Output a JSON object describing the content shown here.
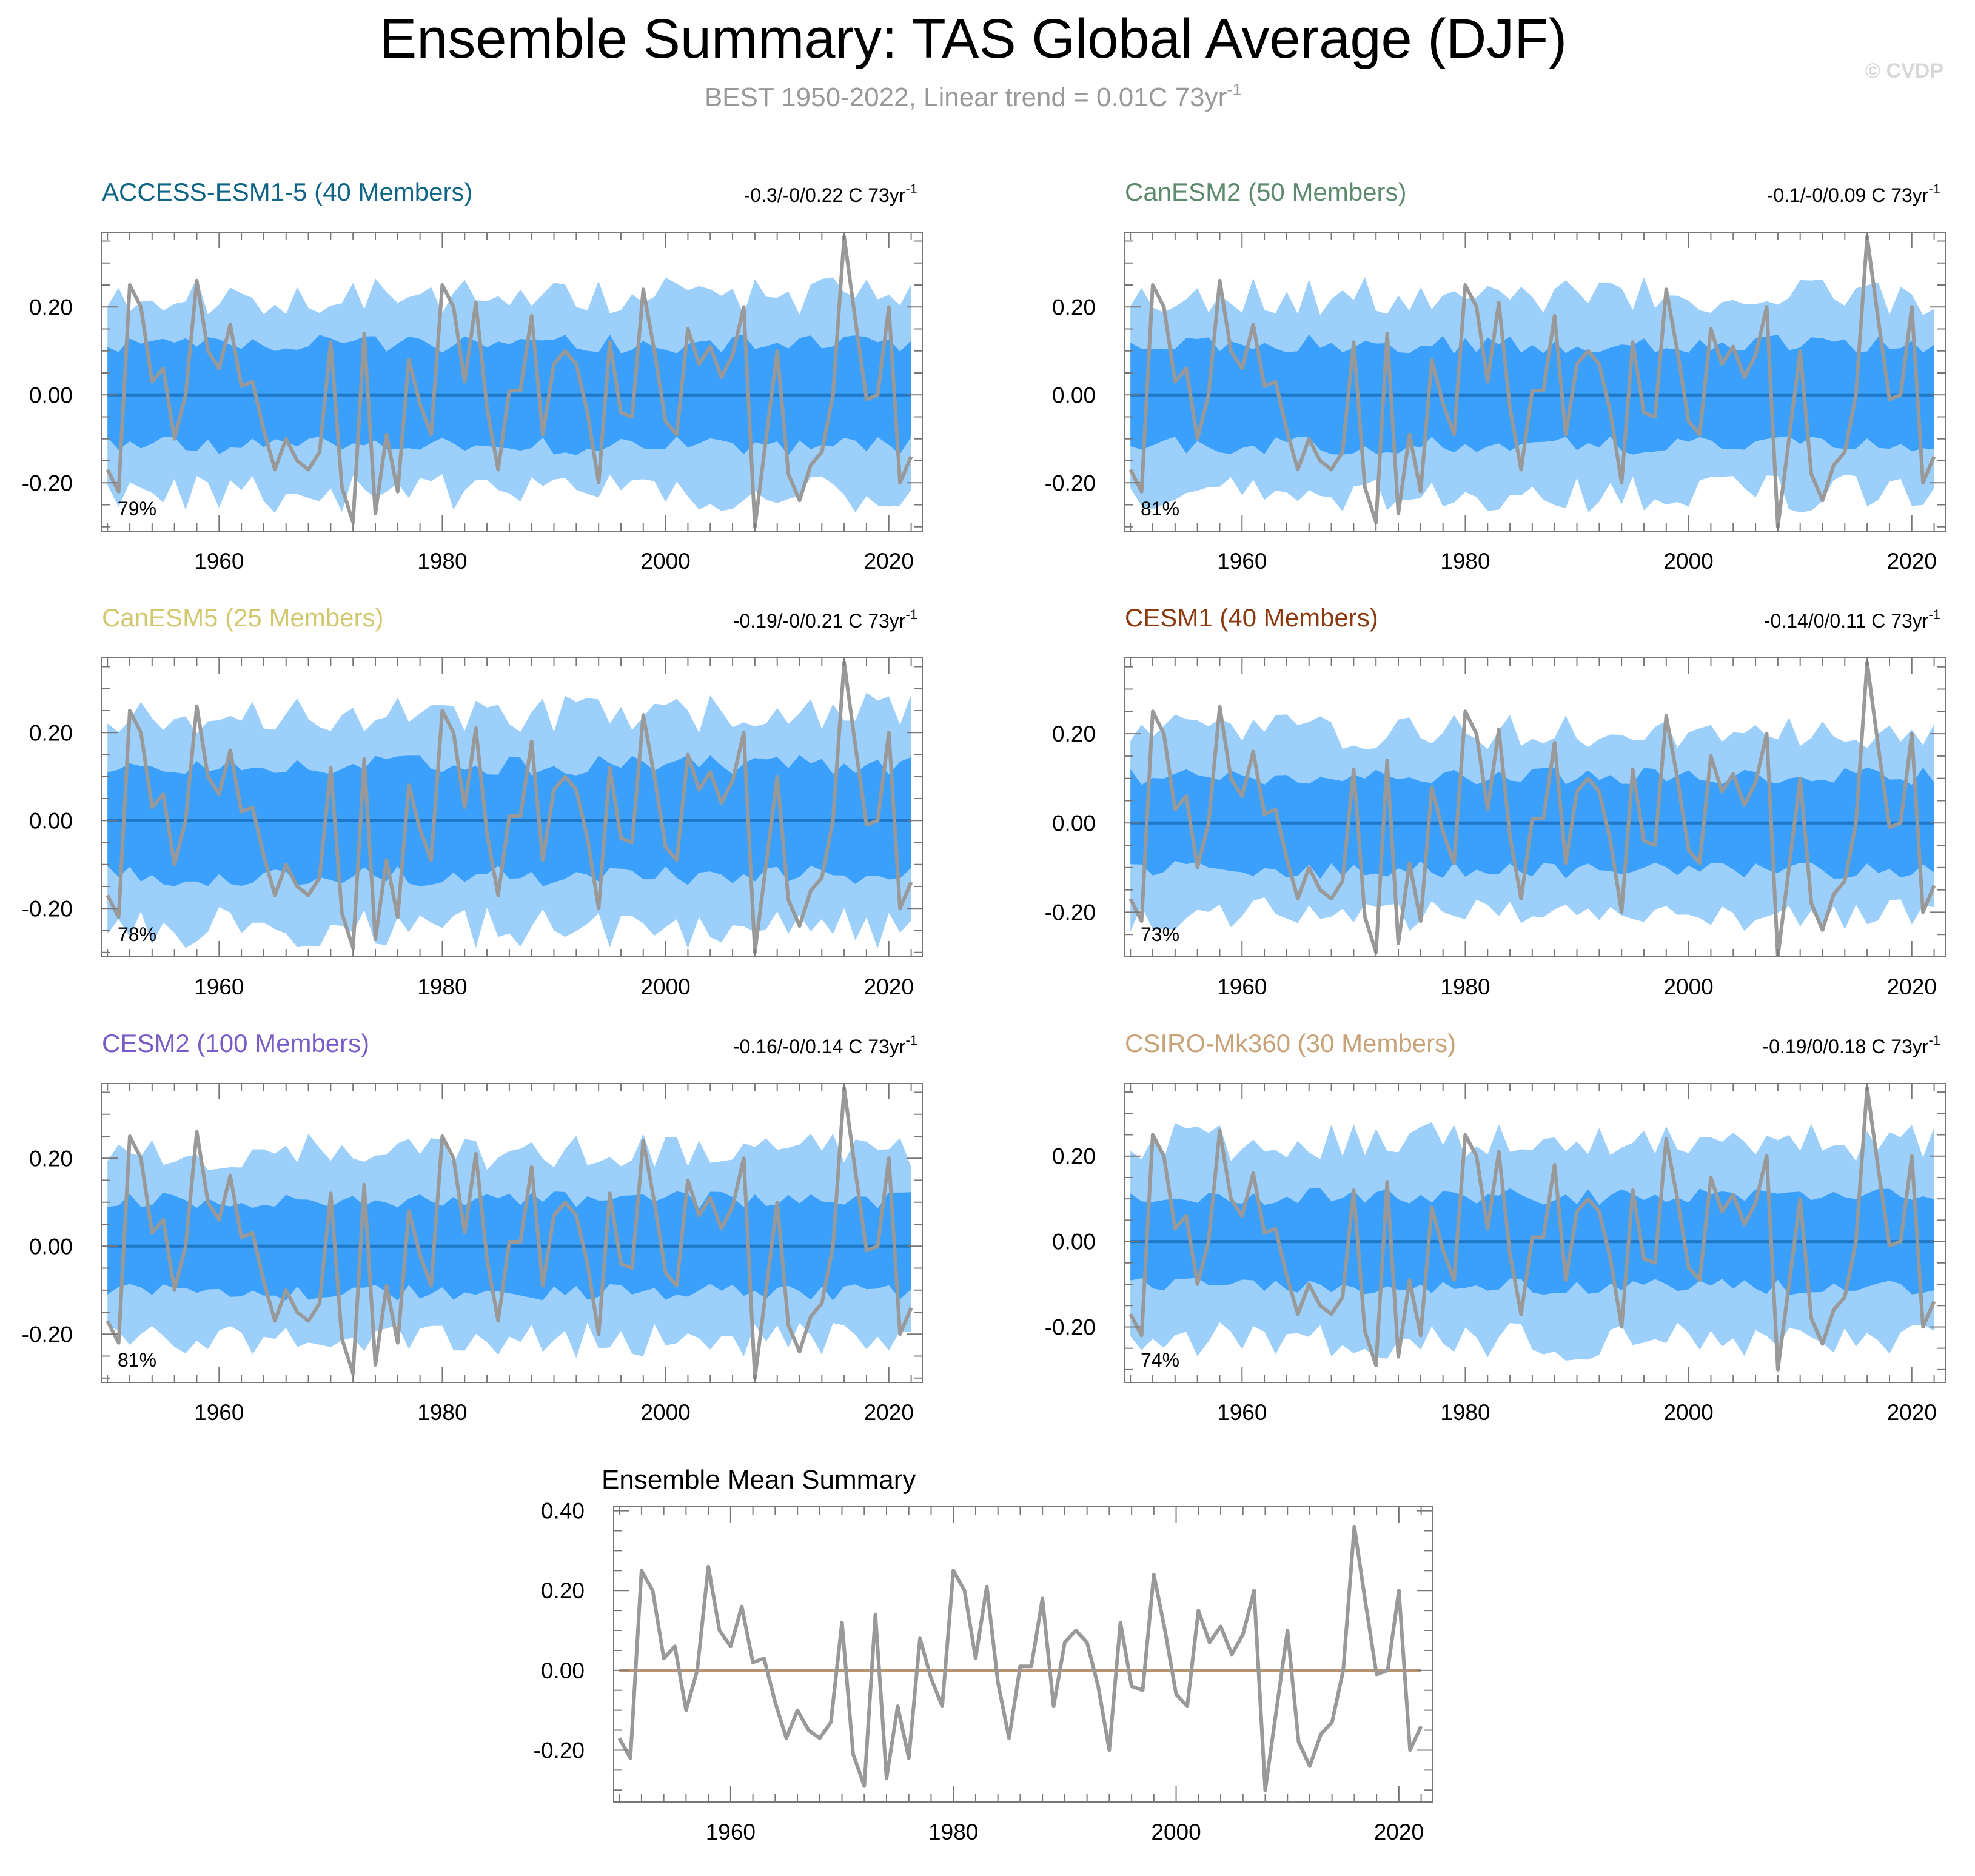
{
  "title": "Ensemble Summary: TAS Global Average (DJF)",
  "subtitle": "BEST 1950-2022, Linear trend = 0.01C 73yr",
  "subtitle_sup": "-1",
  "watermark": "© CVDP",
  "colors": {
    "band_outer": "#9ccffa",
    "band_inner": "#3aa0fb",
    "ens_mean_line": "#1f77c8",
    "obs_line": "#999999",
    "summary_zero_line": "#b89470"
  },
  "chart_data": [
    {
      "type": "area",
      "title": "ACCESS-ESM1-5 (40 Members)",
      "title_color": "#0f6585",
      "trend_label": "-0.3/-0/0.22 C 73yr",
      "trend_sup": "-1",
      "percent_label": "79%",
      "x_range": [
        1950,
        2022
      ],
      "xlim": [
        1949.5,
        2023
      ],
      "ylim": [
        -0.31,
        0.37
      ],
      "y_ticks": [
        -0.2,
        0.0,
        0.2
      ],
      "y_tick_labels": [
        "-0.20",
        "0.00",
        "0.20"
      ],
      "x_ticks": [
        1960,
        1980,
        2000,
        2020
      ],
      "outer_amp": 0.22,
      "inner_amp": 0.11,
      "seed": 11
    },
    {
      "type": "area",
      "title": "CanESM2 (50 Members)",
      "title_color": "#5e8a6e",
      "trend_label": "-0.1/-0/0.09 C 73yr",
      "trend_sup": "-1",
      "percent_label": "81%",
      "x_range": [
        1950,
        2022
      ],
      "xlim": [
        1949.5,
        2023
      ],
      "ylim": [
        -0.31,
        0.37
      ],
      "y_ticks": [
        -0.2,
        0.0,
        0.2
      ],
      "y_tick_labels": [
        "-0.20",
        "0.00",
        "0.20"
      ],
      "x_ticks": [
        1960,
        1980,
        2000,
        2020
      ],
      "outer_amp": 0.22,
      "inner_amp": 0.11,
      "seed": 23
    },
    {
      "type": "area",
      "title": "CanESM5 (25 Members)",
      "title_color": "#d2c86e",
      "trend_label": "-0.19/-0/0.21 C 73yr",
      "trend_sup": "-1",
      "percent_label": "78%",
      "x_range": [
        1950,
        2022
      ],
      "xlim": [
        1949.5,
        2023
      ],
      "ylim": [
        -0.31,
        0.37
      ],
      "y_ticks": [
        -0.2,
        0.0,
        0.2
      ],
      "y_tick_labels": [
        "-0.20",
        "0.00",
        "0.20"
      ],
      "x_ticks": [
        1960,
        1980,
        2000,
        2020
      ],
      "outer_amp": 0.24,
      "inner_amp": 0.12,
      "seed": 37
    },
    {
      "type": "area",
      "title": "CESM1 (40 Members)",
      "title_color": "#8b3a0f",
      "trend_label": "-0.14/0/0.11 C 73yr",
      "trend_sup": "-1",
      "percent_label": "73%",
      "x_range": [
        1950,
        2022
      ],
      "xlim": [
        1949.5,
        2023
      ],
      "ylim": [
        -0.3,
        0.37
      ],
      "y_ticks": [
        -0.2,
        0.0,
        0.2
      ],
      "y_tick_labels": [
        "-0.20",
        "0.00",
        "0.20"
      ],
      "x_ticks": [
        1960,
        1980,
        2000,
        2020
      ],
      "outer_amp": 0.2,
      "inner_amp": 0.1,
      "seed": 41
    },
    {
      "type": "area",
      "title": "CESM2 (100 Members)",
      "title_color": "#7a5cc8",
      "trend_label": "-0.16/-0/0.14 C 73yr",
      "trend_sup": "-1",
      "percent_label": "81%",
      "x_range": [
        1950,
        2022
      ],
      "xlim": [
        1949.5,
        2023
      ],
      "ylim": [
        -0.31,
        0.37
      ],
      "y_ticks": [
        -0.2,
        0.0,
        0.2
      ],
      "y_tick_labels": [
        "-0.20",
        "0.00",
        "0.20"
      ],
      "x_ticks": [
        1960,
        1980,
        2000,
        2020
      ],
      "outer_amp": 0.21,
      "inner_amp": 0.1,
      "seed": 53
    },
    {
      "type": "area",
      "title": "CSIRO-Mk360 (30 Members)",
      "title_color": "#c8a278",
      "trend_label": "-0.19/0/0.18 C 73yr",
      "trend_sup": "-1",
      "percent_label": "74%",
      "x_range": [
        1950,
        2022
      ],
      "xlim": [
        1949.5,
        2023
      ],
      "ylim": [
        -0.33,
        0.37
      ],
      "y_ticks": [
        -0.2,
        0.0,
        0.2
      ],
      "y_tick_labels": [
        "-0.20",
        "0.00",
        "0.20"
      ],
      "x_ticks": [
        1960,
        1980,
        2000,
        2020
      ],
      "outer_amp": 0.23,
      "inner_amp": 0.1,
      "seed": 67
    },
    {
      "type": "line",
      "title": "Ensemble Mean Summary",
      "title_color": "#000000",
      "x_range": [
        1950,
        2022
      ],
      "xlim": [
        1949.5,
        2023
      ],
      "ylim": [
        -0.33,
        0.41
      ],
      "y_ticks": [
        -0.2,
        0.0,
        0.2,
        0.4
      ],
      "y_tick_labels": [
        "-0.20",
        "0.00",
        "0.20",
        "0.40"
      ],
      "x_ticks": [
        1960,
        1980,
        2000,
        2020
      ]
    }
  ],
  "obs_series": {
    "name": "BEST",
    "x_start": 1950,
    "values": [
      -0.17,
      -0.22,
      0.25,
      0.2,
      0.03,
      0.06,
      -0.1,
      0.0,
      0.26,
      0.1,
      0.06,
      0.16,
      0.02,
      0.03,
      -0.08,
      -0.17,
      -0.1,
      -0.15,
      -0.17,
      -0.13,
      0.12,
      -0.21,
      -0.29,
      0.14,
      -0.27,
      -0.09,
      -0.22,
      0.08,
      -0.02,
      -0.09,
      0.25,
      0.2,
      0.03,
      0.21,
      -0.03,
      -0.17,
      0.01,
      0.01,
      0.18,
      -0.09,
      0.07,
      0.1,
      0.07,
      -0.04,
      -0.2,
      0.12,
      -0.04,
      -0.05,
      0.24,
      0.1,
      -0.06,
      -0.09,
      0.15,
      0.07,
      0.11,
      0.04,
      0.09,
      0.2,
      -0.3,
      -0.1,
      0.1,
      -0.18,
      -0.24,
      -0.16,
      -0.13,
      0.0,
      0.36,
      0.17,
      -0.01,
      0.0,
      0.2,
      -0.2,
      -0.14
    ]
  }
}
